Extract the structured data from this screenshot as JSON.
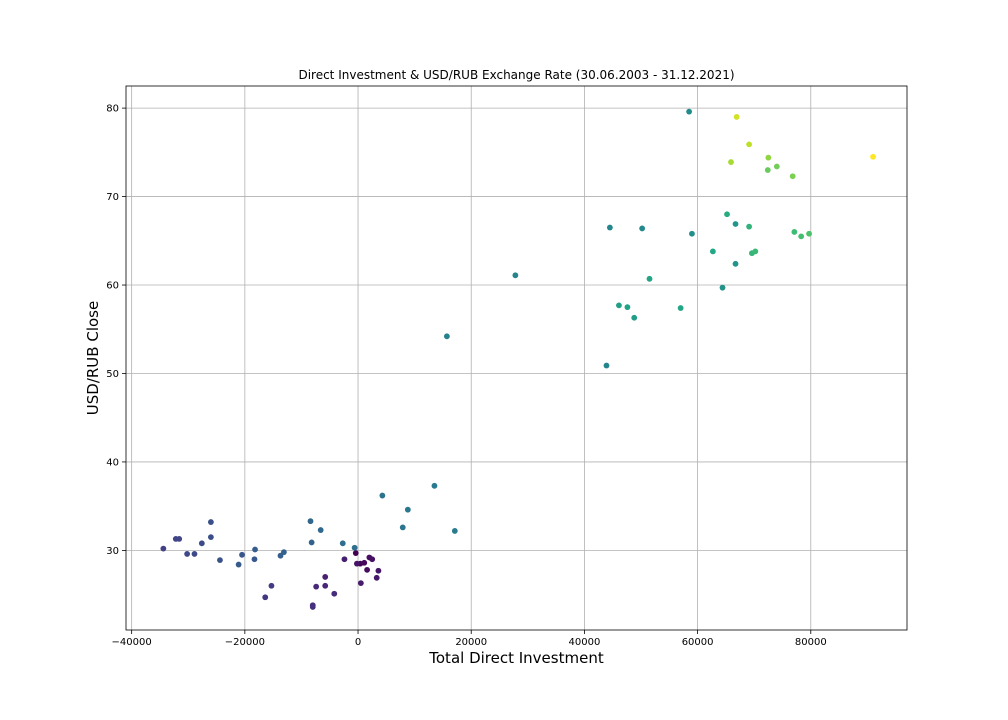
{
  "chart_data": {
    "type": "scatter",
    "title": "Direct Investment & USD/RUB Exchange Rate (30.06.2003 - 31.12.2021)",
    "xlabel": "Total Direct Investment",
    "ylabel": "USD/RUB Close",
    "xlim": [
      -41000,
      97000
    ],
    "ylim": [
      21,
      82.5
    ],
    "xticks": [
      -40000,
      -20000,
      0,
      20000,
      40000,
      60000,
      80000
    ],
    "xtick_labels": [
      "−40000",
      "−20000",
      "0",
      "20000",
      "40000",
      "60000",
      "80000"
    ],
    "yticks": [
      30,
      40,
      50,
      60,
      70,
      80
    ],
    "ytick_labels": [
      "30",
      "40",
      "50",
      "60",
      "70",
      "80"
    ],
    "grid": true,
    "colormap": "viridis",
    "points": [
      {
        "x": -400,
        "y": 29.7,
        "c": 0.0
      },
      {
        "x": 400,
        "y": 28.5,
        "c": 0.02
      },
      {
        "x": 1100,
        "y": 28.6,
        "c": 0.03
      },
      {
        "x": 1600,
        "y": 27.8,
        "c": 0.04
      },
      {
        "x": 2000,
        "y": 29.2,
        "c": 0.05
      },
      {
        "x": 2500,
        "y": 29.0,
        "c": 0.06
      },
      {
        "x": -200,
        "y": 28.5,
        "c": 0.07
      },
      {
        "x": 3600,
        "y": 27.7,
        "c": 0.08
      },
      {
        "x": 3300,
        "y": 26.9,
        "c": 0.09
      },
      {
        "x": 500,
        "y": 26.3,
        "c": 0.1
      },
      {
        "x": -2400,
        "y": 29.0,
        "c": 0.11
      },
      {
        "x": -5800,
        "y": 27.0,
        "c": 0.12
      },
      {
        "x": -5800,
        "y": 26.0,
        "c": 0.14
      },
      {
        "x": -7400,
        "y": 25.9,
        "c": 0.15
      },
      {
        "x": -4200,
        "y": 25.1,
        "c": 0.16
      },
      {
        "x": -8000,
        "y": 23.8,
        "c": 0.17
      },
      {
        "x": -8000,
        "y": 23.6,
        "c": 0.18
      },
      {
        "x": -16400,
        "y": 24.7,
        "c": 0.2
      },
      {
        "x": -15300,
        "y": 26.0,
        "c": 0.22
      },
      {
        "x": -34400,
        "y": 30.2,
        "c": 0.24
      },
      {
        "x": -32200,
        "y": 31.3,
        "c": 0.25
      },
      {
        "x": -31600,
        "y": 31.3,
        "c": 0.26
      },
      {
        "x": -30200,
        "y": 29.6,
        "c": 0.27
      },
      {
        "x": -28900,
        "y": 29.6,
        "c": 0.28
      },
      {
        "x": -27600,
        "y": 30.8,
        "c": 0.29
      },
      {
        "x": -26000,
        "y": 31.5,
        "c": 0.3
      },
      {
        "x": -26000,
        "y": 33.2,
        "c": 0.31
      },
      {
        "x": -24400,
        "y": 28.9,
        "c": 0.32
      },
      {
        "x": -20500,
        "y": 29.5,
        "c": 0.34
      },
      {
        "x": -18300,
        "y": 29.0,
        "c": 0.35
      },
      {
        "x": -21100,
        "y": 28.4,
        "c": 0.36
      },
      {
        "x": -18200,
        "y": 30.1,
        "c": 0.37
      },
      {
        "x": -13700,
        "y": 29.4,
        "c": 0.38
      },
      {
        "x": -13100,
        "y": 29.8,
        "c": 0.39
      },
      {
        "x": -8200,
        "y": 30.9,
        "c": 0.4
      },
      {
        "x": -8400,
        "y": 33.3,
        "c": 0.42
      },
      {
        "x": -6600,
        "y": 32.3,
        "c": 0.43
      },
      {
        "x": -2700,
        "y": 30.8,
        "c": 0.45
      },
      {
        "x": -600,
        "y": 30.3,
        "c": 0.46
      },
      {
        "x": 4300,
        "y": 36.2,
        "c": 0.48
      },
      {
        "x": 7900,
        "y": 32.6,
        "c": 0.49
      },
      {
        "x": 8800,
        "y": 34.6,
        "c": 0.5
      },
      {
        "x": 13500,
        "y": 37.3,
        "c": 0.51
      },
      {
        "x": 17100,
        "y": 32.2,
        "c": 0.52
      },
      {
        "x": 15700,
        "y": 54.2,
        "c": 0.55
      },
      {
        "x": 27800,
        "y": 61.1,
        "c": 0.56
      },
      {
        "x": 43900,
        "y": 50.9,
        "c": 0.57
      },
      {
        "x": 44500,
        "y": 66.5,
        "c": 0.58
      },
      {
        "x": 50200,
        "y": 66.4,
        "c": 0.59
      },
      {
        "x": 58500,
        "y": 79.6,
        "c": 0.6
      },
      {
        "x": 59000,
        "y": 65.8,
        "c": 0.62
      },
      {
        "x": 64400,
        "y": 59.7,
        "c": 0.64
      },
      {
        "x": 66700,
        "y": 62.4,
        "c": 0.65
      },
      {
        "x": 66700,
        "y": 66.9,
        "c": 0.66
      },
      {
        "x": 48800,
        "y": 56.3,
        "c": 0.7
      },
      {
        "x": 46100,
        "y": 57.7,
        "c": 0.71
      },
      {
        "x": 47600,
        "y": 57.5,
        "c": 0.72
      },
      {
        "x": 51500,
        "y": 60.7,
        "c": 0.73
      },
      {
        "x": 57000,
        "y": 57.4,
        "c": 0.74
      },
      {
        "x": 62700,
        "y": 63.8,
        "c": 0.75
      },
      {
        "x": 65200,
        "y": 68.0,
        "c": 0.76
      },
      {
        "x": 69100,
        "y": 66.6,
        "c": 0.78
      },
      {
        "x": 69600,
        "y": 63.6,
        "c": 0.79
      },
      {
        "x": 70200,
        "y": 63.8,
        "c": 0.8
      },
      {
        "x": 77100,
        "y": 66.0,
        "c": 0.81
      },
      {
        "x": 78300,
        "y": 65.5,
        "c": 0.82
      },
      {
        "x": 79700,
        "y": 65.8,
        "c": 0.83
      },
      {
        "x": 72400,
        "y": 73.0,
        "c": 0.86
      },
      {
        "x": 74000,
        "y": 73.4,
        "c": 0.87
      },
      {
        "x": 76800,
        "y": 72.3,
        "c": 0.88
      },
      {
        "x": 72500,
        "y": 74.4,
        "c": 0.9
      },
      {
        "x": 65900,
        "y": 73.9,
        "c": 0.92
      },
      {
        "x": 69100,
        "y": 75.9,
        "c": 0.94
      },
      {
        "x": 66900,
        "y": 79.0,
        "c": 0.96
      },
      {
        "x": 91000,
        "y": 74.5,
        "c": 1.0
      }
    ]
  }
}
